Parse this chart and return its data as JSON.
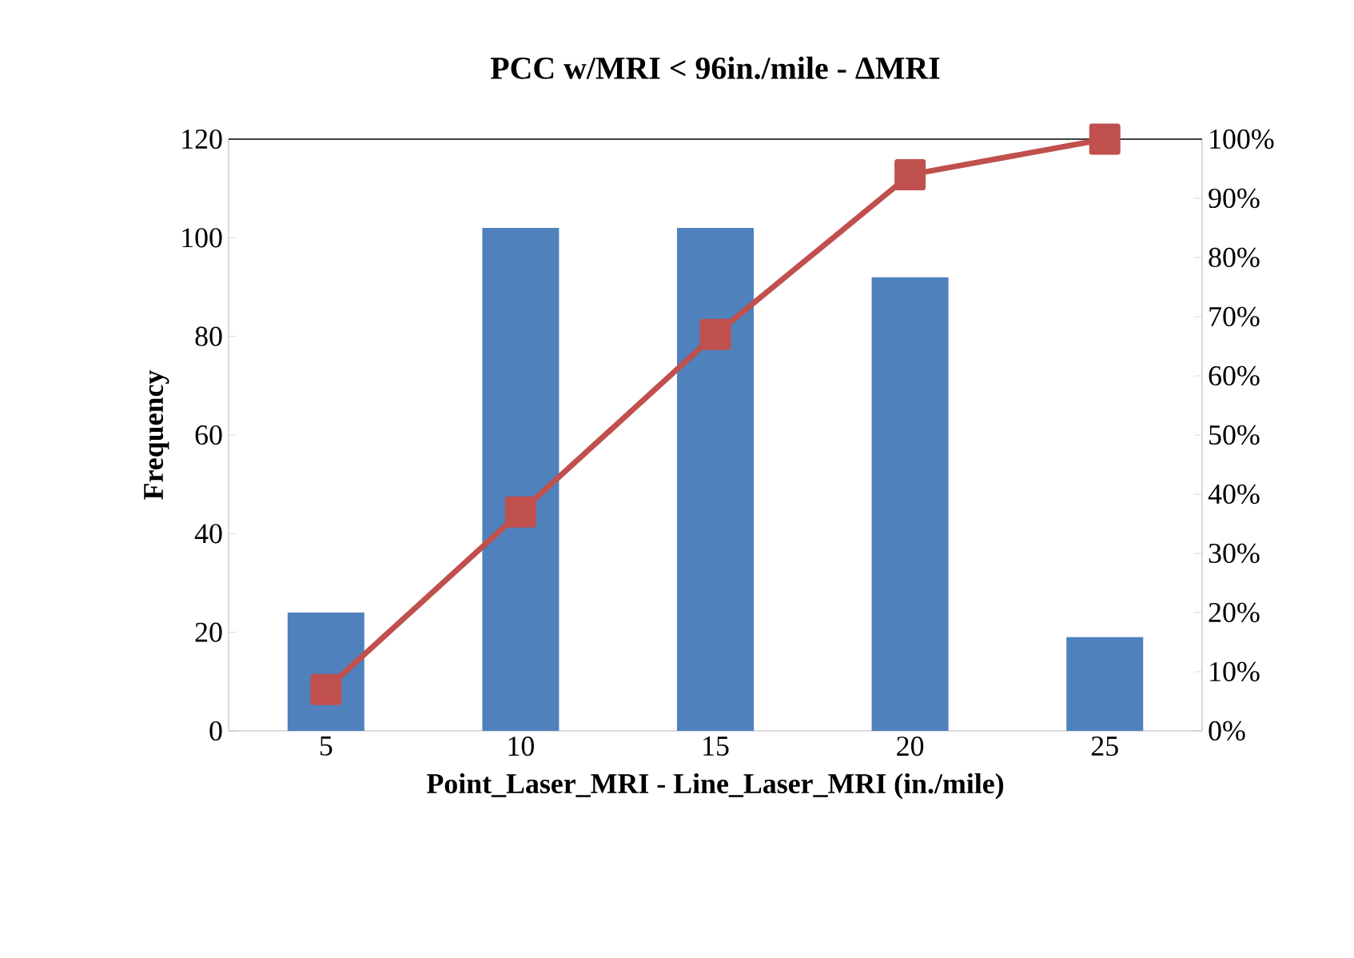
{
  "chart_data": {
    "type": "bar",
    "title": "PCC w/MRI < 96in./mile - ΔMRI",
    "xlabel": "Point_Laser_MRI - Line_Laser_MRI (in./mile)",
    "ylabel": "Frequency",
    "categories": [
      "5",
      "10",
      "15",
      "20",
      "25"
    ],
    "series": [
      {
        "color": "#4f81bd",
        "values": [
          24,
          102,
          102,
          92,
          19
        ]
      },
      {
        "type": "line",
        "axis": "y2",
        "color": "#c0504d",
        "marker": "square",
        "values": [
          7,
          37,
          67,
          94,
          100
        ]
      }
    ],
    "ylim": [
      0,
      120
    ],
    "yticks": [
      0,
      20,
      40,
      60,
      80,
      100,
      120
    ],
    "y2lim": [
      0,
      100
    ],
    "y2ticks": [
      {
        "value": 0,
        "label": "0%"
      },
      {
        "value": 10,
        "label": "10%"
      },
      {
        "value": 20,
        "label": "20%"
      },
      {
        "value": 30,
        "label": "30%"
      },
      {
        "value": 40,
        "label": "40%"
      },
      {
        "value": 50,
        "label": "50%"
      },
      {
        "value": 60,
        "label": "60%"
      },
      {
        "value": 70,
        "label": "70%"
      },
      {
        "value": 80,
        "label": "80%"
      },
      {
        "value": 90,
        "label": "90%"
      },
      {
        "value": 100,
        "label": "100%"
      }
    ],
    "grid": false
  }
}
